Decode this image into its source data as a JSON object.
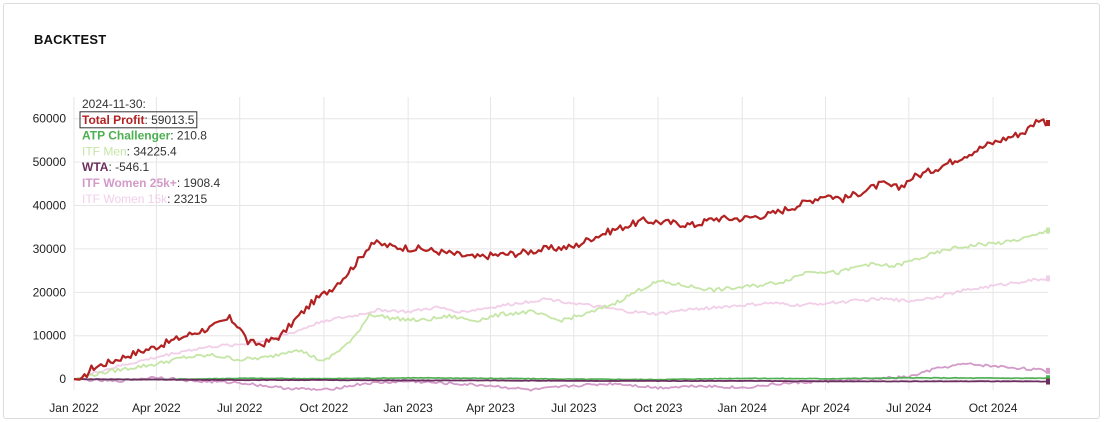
{
  "header": {
    "title": "BACKTEST"
  },
  "colors": {
    "total_profit": "#b22222",
    "atp_challenger": "#4caf50",
    "itf_men": "#c5e6a6",
    "wta": "#6b2f5f",
    "itf_women_25k": "#d39bc9",
    "itf_women_15k": "#f2cfe8",
    "grid": "#e6e6e6"
  },
  "chart_data": {
    "type": "line",
    "ylim": [
      -2500,
      65000
    ],
    "y_ticks": [
      0,
      10000,
      20000,
      30000,
      40000,
      50000,
      60000
    ],
    "x_ticks": [
      "2022-01-01",
      "2022-04-01",
      "2022-07-01",
      "2022-10-01",
      "2023-01-01",
      "2023-04-01",
      "2023-07-01",
      "2023-10-01",
      "2024-01-01",
      "2024-04-01",
      "2024-07-01",
      "2024-10-01"
    ],
    "x_tick_labels": [
      "Jan 2022",
      "Apr 2022",
      "Jul 2022",
      "Oct 2022",
      "Jan 2023",
      "Apr 2023",
      "Jul 2023",
      "Oct 2023",
      "Jan 2024",
      "Apr 2024",
      "Jul 2024",
      "Oct 2024"
    ],
    "x_range": [
      "2022-01-01",
      "2024-11-30"
    ],
    "grid": true,
    "legend": {
      "placement": "top-left",
      "date_label": "2024-11-30:"
    },
    "series": [
      {
        "name": "Total Profit",
        "color_key": "total_profit",
        "last": "59013.5",
        "boxed": true,
        "points": [
          [
            "2022-01-01",
            0
          ],
          [
            "2022-01-10",
            -200
          ],
          [
            "2022-01-20",
            2500
          ],
          [
            "2022-02-10",
            4000
          ],
          [
            "2022-03-01",
            5500
          ],
          [
            "2022-04-01",
            7500
          ],
          [
            "2022-04-20",
            9000
          ],
          [
            "2022-05-10",
            10500
          ],
          [
            "2022-06-01",
            12000
          ],
          [
            "2022-06-20",
            14000
          ],
          [
            "2022-07-01",
            12000
          ],
          [
            "2022-07-10",
            8500
          ],
          [
            "2022-07-25",
            8000
          ],
          [
            "2022-08-15",
            10000
          ],
          [
            "2022-09-01",
            14000
          ],
          [
            "2022-09-20",
            18000
          ],
          [
            "2022-10-10",
            21000
          ],
          [
            "2022-10-25",
            24000
          ],
          [
            "2022-11-10",
            28000
          ],
          [
            "2022-11-22",
            31500
          ],
          [
            "2022-12-15",
            30500
          ],
          [
            "2023-01-15",
            30000
          ],
          [
            "2023-02-15",
            29000
          ],
          [
            "2023-03-15",
            28000
          ],
          [
            "2023-04-01",
            28500
          ],
          [
            "2023-05-01",
            29000
          ],
          [
            "2023-06-01",
            30000
          ],
          [
            "2023-07-01",
            30500
          ],
          [
            "2023-07-20",
            32500
          ],
          [
            "2023-08-15",
            34500
          ],
          [
            "2023-09-15",
            36500
          ],
          [
            "2023-10-15",
            36000
          ],
          [
            "2023-11-10",
            35500
          ],
          [
            "2023-12-01",
            37000
          ],
          [
            "2024-01-01",
            37000
          ],
          [
            "2024-02-01",
            38000
          ],
          [
            "2024-03-01",
            40000
          ],
          [
            "2024-04-01",
            42500
          ],
          [
            "2024-04-20",
            41500
          ],
          [
            "2024-05-15",
            43500
          ],
          [
            "2024-06-01",
            45000
          ],
          [
            "2024-06-20",
            44000
          ],
          [
            "2024-07-05",
            46500
          ],
          [
            "2024-07-25",
            48000
          ],
          [
            "2024-08-15",
            50000
          ],
          [
            "2024-09-05",
            52000
          ],
          [
            "2024-09-25",
            54000
          ],
          [
            "2024-10-15",
            55500
          ],
          [
            "2024-11-05",
            57000
          ],
          [
            "2024-11-20",
            60000
          ],
          [
            "2024-11-30",
            59013.5
          ]
        ]
      },
      {
        "name": "ATP Challenger",
        "color_key": "atp_challenger",
        "last": "210.8",
        "points": [
          [
            "2022-01-01",
            0
          ],
          [
            "2022-04-01",
            -100
          ],
          [
            "2022-07-01",
            200
          ],
          [
            "2022-10-01",
            100
          ],
          [
            "2023-01-01",
            300
          ],
          [
            "2023-04-01",
            200
          ],
          [
            "2023-07-01",
            0
          ],
          [
            "2023-10-01",
            -100
          ],
          [
            "2024-01-01",
            200
          ],
          [
            "2024-04-01",
            100
          ],
          [
            "2024-07-01",
            300
          ],
          [
            "2024-11-30",
            210.8
          ]
        ]
      },
      {
        "name": "ITF Men",
        "color_key": "itf_men",
        "last": "34225.4",
        "points": [
          [
            "2022-01-01",
            0
          ],
          [
            "2022-02-01",
            1500
          ],
          [
            "2022-03-01",
            2500
          ],
          [
            "2022-04-01",
            3500
          ],
          [
            "2022-05-01",
            5000
          ],
          [
            "2022-06-01",
            5500
          ],
          [
            "2022-07-01",
            4500
          ],
          [
            "2022-08-01",
            5000
          ],
          [
            "2022-09-01",
            7000
          ],
          [
            "2022-10-01",
            4000
          ],
          [
            "2022-11-01",
            9000
          ],
          [
            "2022-11-20",
            15000
          ],
          [
            "2022-12-15",
            14000
          ],
          [
            "2023-01-15",
            13500
          ],
          [
            "2023-02-15",
            14500
          ],
          [
            "2023-03-15",
            13500
          ],
          [
            "2023-04-15",
            15000
          ],
          [
            "2023-05-15",
            15500
          ],
          [
            "2023-06-15",
            13500
          ],
          [
            "2023-07-15",
            15000
          ],
          [
            "2023-08-15",
            17500
          ],
          [
            "2023-09-10",
            20500
          ],
          [
            "2023-10-01",
            22500
          ],
          [
            "2023-11-01",
            21500
          ],
          [
            "2023-12-01",
            20500
          ],
          [
            "2024-01-15",
            21500
          ],
          [
            "2024-02-15",
            22500
          ],
          [
            "2024-03-15",
            25000
          ],
          [
            "2024-04-15",
            24500
          ],
          [
            "2024-05-15",
            26500
          ],
          [
            "2024-06-15",
            26000
          ],
          [
            "2024-07-15",
            28000
          ],
          [
            "2024-08-15",
            30000
          ],
          [
            "2024-09-15",
            31000
          ],
          [
            "2024-10-15",
            31500
          ],
          [
            "2024-11-15",
            33000
          ],
          [
            "2024-11-30",
            34225.4
          ]
        ]
      },
      {
        "name": "WTA",
        "color_key": "wta",
        "last": "-546.1",
        "points": [
          [
            "2022-01-01",
            0
          ],
          [
            "2022-04-01",
            -100
          ],
          [
            "2022-07-01",
            -200
          ],
          [
            "2022-10-01",
            -200
          ],
          [
            "2023-01-01",
            -300
          ],
          [
            "2023-04-01",
            -300
          ],
          [
            "2023-07-01",
            -400
          ],
          [
            "2023-10-01",
            -400
          ],
          [
            "2024-01-01",
            -400
          ],
          [
            "2024-04-01",
            -500
          ],
          [
            "2024-07-01",
            -500
          ],
          [
            "2024-10-01",
            -500
          ],
          [
            "2024-11-30",
            -546.1
          ]
        ]
      },
      {
        "name": "ITF Women 25k+",
        "color_key": "itf_women_25k",
        "last": "1908.4",
        "points": [
          [
            "2022-01-01",
            0
          ],
          [
            "2022-02-15",
            -500
          ],
          [
            "2022-04-01",
            500
          ],
          [
            "2022-05-15",
            -500
          ],
          [
            "2022-07-01",
            -800
          ],
          [
            "2022-08-15",
            -2000
          ],
          [
            "2022-10-01",
            -2500
          ],
          [
            "2022-11-15",
            -1000
          ],
          [
            "2023-01-01",
            -500
          ],
          [
            "2023-02-15",
            -1000
          ],
          [
            "2023-04-01",
            -1500
          ],
          [
            "2023-05-15",
            -2500
          ],
          [
            "2023-07-01",
            -1500
          ],
          [
            "2023-08-15",
            -1000
          ],
          [
            "2023-10-01",
            -2000
          ],
          [
            "2023-11-15",
            -1500
          ],
          [
            "2024-01-01",
            -2000
          ],
          [
            "2024-02-15",
            -1000
          ],
          [
            "2024-04-01",
            -500
          ],
          [
            "2024-05-15",
            0
          ],
          [
            "2024-07-01",
            500
          ],
          [
            "2024-08-01",
            2500
          ],
          [
            "2024-09-01",
            3500
          ],
          [
            "2024-10-01",
            3000
          ],
          [
            "2024-11-01",
            2500
          ],
          [
            "2024-11-30",
            1908.4
          ]
        ]
      },
      {
        "name": "ITF Women 15k",
        "color_key": "itf_women_15k",
        "last": "23215",
        "points": [
          [
            "2022-01-01",
            0
          ],
          [
            "2022-02-01",
            2000
          ],
          [
            "2022-03-01",
            3500
          ],
          [
            "2022-04-01",
            5000
          ],
          [
            "2022-05-01",
            6500
          ],
          [
            "2022-06-01",
            7500
          ],
          [
            "2022-07-01",
            8000
          ],
          [
            "2022-08-01",
            9000
          ],
          [
            "2022-09-01",
            11000
          ],
          [
            "2022-10-01",
            13500
          ],
          [
            "2022-11-01",
            14500
          ],
          [
            "2022-12-01",
            16000
          ],
          [
            "2023-01-01",
            15500
          ],
          [
            "2023-02-01",
            16500
          ],
          [
            "2023-03-01",
            15500
          ],
          [
            "2023-04-01",
            16500
          ],
          [
            "2023-05-01",
            17500
          ],
          [
            "2023-06-01",
            18500
          ],
          [
            "2023-07-01",
            17500
          ],
          [
            "2023-08-01",
            16500
          ],
          [
            "2023-09-01",
            15500
          ],
          [
            "2023-10-01",
            15000
          ],
          [
            "2023-11-01",
            16000
          ],
          [
            "2023-12-01",
            16500
          ],
          [
            "2024-01-01",
            17000
          ],
          [
            "2024-02-01",
            17500
          ],
          [
            "2024-03-01",
            17000
          ],
          [
            "2024-04-01",
            17500
          ],
          [
            "2024-05-01",
            18000
          ],
          [
            "2024-06-01",
            18500
          ],
          [
            "2024-07-01",
            18000
          ],
          [
            "2024-08-01",
            19000
          ],
          [
            "2024-09-01",
            20500
          ],
          [
            "2024-10-01",
            21500
          ],
          [
            "2024-11-01",
            22500
          ],
          [
            "2024-11-30",
            23215
          ]
        ]
      }
    ]
  }
}
